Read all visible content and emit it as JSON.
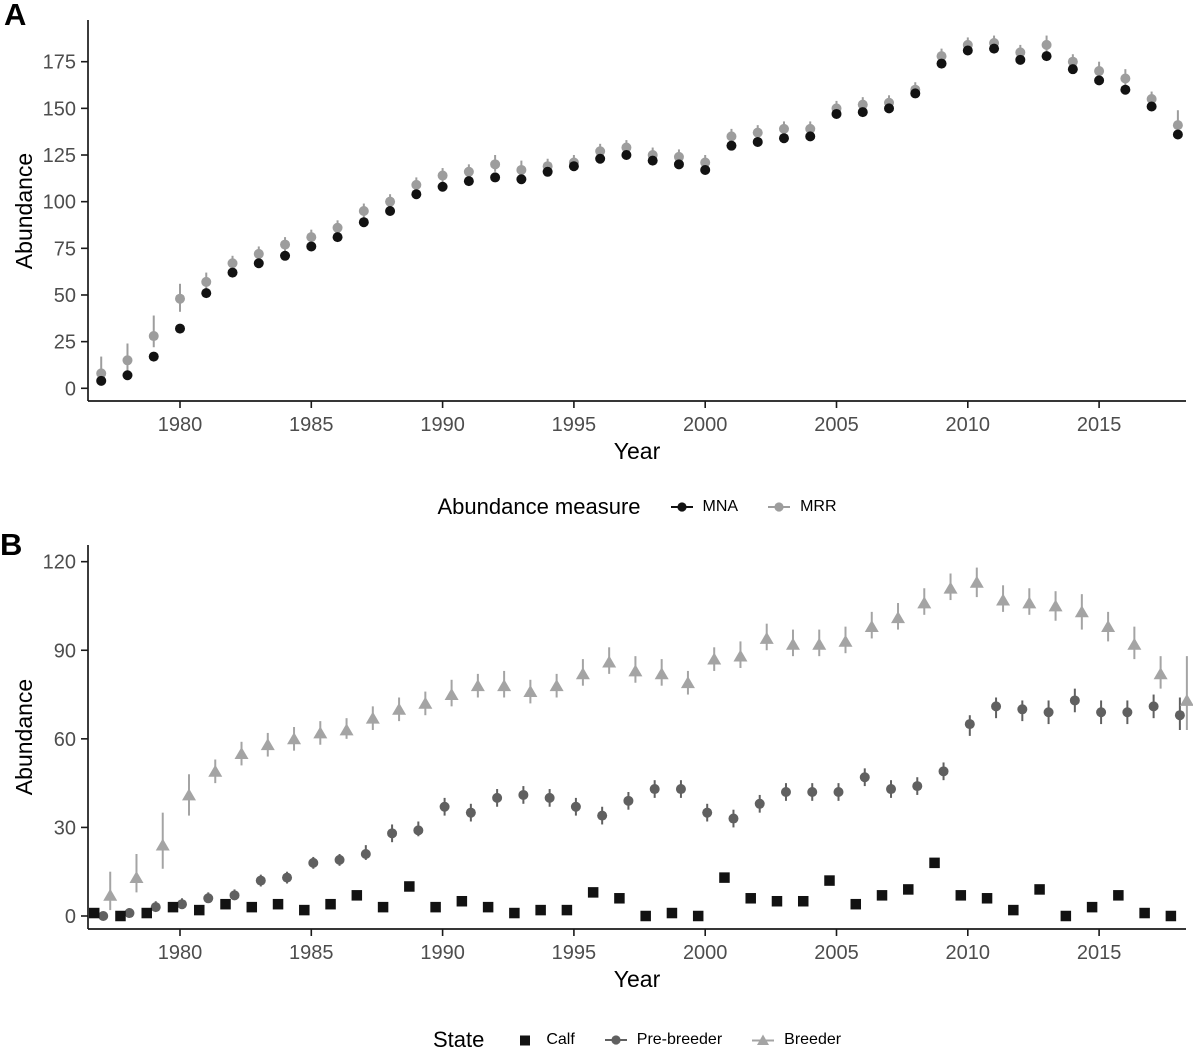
{
  "figure": {
    "panel_a_label": "A",
    "panel_b_label": "B"
  },
  "chart_data": [
    {
      "panel_label": "A",
      "type": "scatter",
      "title": "",
      "xlabel": "Year",
      "ylabel": "Abundance",
      "legend_title": "Abundance measure",
      "legend_position": "bottom",
      "grid": false,
      "xlim": [
        1976.5,
        2018.5
      ],
      "ylim": [
        0,
        190
      ],
      "xticks": [
        1980,
        1985,
        1990,
        1995,
        2000,
        2005,
        2010,
        2015
      ],
      "yticks": [
        0,
        25,
        50,
        75,
        100,
        125,
        150,
        175
      ],
      "x": [
        1977,
        1978,
        1979,
        1980,
        1981,
        1982,
        1983,
        1984,
        1985,
        1986,
        1987,
        1988,
        1989,
        1990,
        1991,
        1992,
        1993,
        1994,
        1995,
        1996,
        1997,
        1998,
        1999,
        2000,
        2001,
        2002,
        2003,
        2004,
        2005,
        2006,
        2007,
        2008,
        2009,
        2010,
        2011,
        2012,
        2013,
        2014,
        2015,
        2016,
        2017,
        2018
      ],
      "series": [
        {
          "name": "MNA",
          "marker": "circle",
          "color": "#121212",
          "values": [
            4,
            7,
            17,
            32,
            51,
            62,
            67,
            71,
            76,
            81,
            89,
            95,
            104,
            108,
            111,
            113,
            112,
            116,
            119,
            123,
            125,
            122,
            120,
            117,
            130,
            132,
            134,
            135,
            147,
            148,
            150,
            158,
            174,
            181,
            182,
            176,
            178,
            171,
            165,
            160,
            151,
            136
          ]
        },
        {
          "name": "MRR",
          "marker": "circle",
          "color": "#9d9d9d",
          "values": [
            8,
            15,
            28,
            48,
            57,
            67,
            72,
            77,
            81,
            86,
            95,
            100,
            109,
            114,
            116,
            120,
            117,
            119,
            121,
            127,
            129,
            125,
            124,
            121,
            135,
            137,
            139,
            139,
            150,
            152,
            153,
            160,
            178,
            184,
            185,
            180,
            184,
            175,
            170,
            166,
            155,
            141
          ],
          "ci_lo": [
            5,
            8,
            22,
            41,
            53,
            63,
            68,
            73,
            77,
            82,
            91,
            96,
            105,
            110,
            112,
            116,
            113,
            115,
            117,
            123,
            125,
            121,
            120,
            117,
            131,
            133,
            135,
            135,
            146,
            148,
            149,
            156,
            174,
            180,
            181,
            176,
            180,
            171,
            166,
            161,
            151,
            136
          ],
          "ci_hi": [
            17,
            24,
            39,
            56,
            62,
            71,
            76,
            81,
            85,
            90,
            99,
            104,
            113,
            118,
            120,
            125,
            122,
            123,
            125,
            131,
            133,
            129,
            128,
            125,
            139,
            141,
            143,
            143,
            154,
            156,
            157,
            164,
            182,
            188,
            189,
            184,
            189,
            179,
            175,
            171,
            159,
            149
          ]
        }
      ]
    },
    {
      "panel_label": "B",
      "type": "scatter",
      "title": "",
      "xlabel": "Year",
      "ylabel": "Abundance",
      "legend_title": "State",
      "legend_position": "bottom",
      "grid": false,
      "xlim": [
        1976.5,
        2018.5
      ],
      "ylim": [
        0,
        126
      ],
      "xticks": [
        1980,
        1985,
        1990,
        1995,
        2000,
        2005,
        2010,
        2015
      ],
      "yticks": [
        0,
        30,
        60,
        90,
        120
      ],
      "x": [
        1977,
        1978,
        1979,
        1980,
        1981,
        1982,
        1983,
        1984,
        1985,
        1986,
        1987,
        1988,
        1989,
        1990,
        1991,
        1992,
        1993,
        1994,
        1995,
        1996,
        1997,
        1998,
        1999,
        2000,
        2001,
        2002,
        2003,
        2004,
        2005,
        2006,
        2007,
        2008,
        2009,
        2010,
        2011,
        2012,
        2013,
        2014,
        2015,
        2016,
        2017,
        2018
      ],
      "series": [
        {
          "name": "Calf",
          "marker": "square",
          "color": "#121212",
          "values": [
            1,
            0,
            1,
            3,
            2,
            4,
            3,
            4,
            2,
            4,
            7,
            3,
            10,
            3,
            5,
            3,
            1,
            2,
            2,
            8,
            6,
            0,
            1,
            0,
            13,
            6,
            5,
            5,
            12,
            4,
            7,
            9,
            18,
            7,
            6,
            2,
            9,
            0,
            3,
            7,
            1,
            0
          ]
        },
        {
          "name": "Pre-breeder",
          "marker": "circle",
          "color": "#606060",
          "values": [
            0,
            1,
            3,
            4,
            6,
            7,
            12,
            13,
            18,
            19,
            21,
            28,
            29,
            37,
            35,
            40,
            41,
            40,
            37,
            34,
            39,
            43,
            43,
            35,
            33,
            38,
            42,
            42,
            42,
            47,
            43,
            44,
            49,
            65,
            71,
            70,
            69,
            73,
            69,
            69,
            71,
            68
          ],
          "ci_lo": [
            0,
            0,
            2,
            3,
            5,
            6,
            10,
            11,
            16,
            17,
            19,
            25,
            27,
            34,
            32,
            37,
            38,
            37,
            34,
            31,
            36,
            40,
            40,
            32,
            30,
            35,
            39,
            39,
            39,
            44,
            40,
            41,
            46,
            61,
            67,
            66,
            65,
            69,
            65,
            65,
            67,
            63
          ],
          "ci_hi": [
            1,
            2,
            5,
            6,
            8,
            9,
            14,
            15,
            20,
            21,
            24,
            31,
            32,
            40,
            38,
            43,
            44,
            43,
            40,
            37,
            42,
            46,
            46,
            38,
            36,
            41,
            45,
            45,
            45,
            50,
            46,
            47,
            52,
            68,
            74,
            73,
            73,
            77,
            73,
            73,
            75,
            74
          ]
        },
        {
          "name": "Breeder",
          "marker": "triangle",
          "color": "#a4a4a4",
          "values": [
            7,
            13,
            24,
            41,
            49,
            55,
            58,
            60,
            62,
            63,
            67,
            70,
            72,
            75,
            78,
            78,
            76,
            78,
            82,
            86,
            83,
            82,
            79,
            87,
            88,
            94,
            92,
            92,
            93,
            98,
            101,
            106,
            111,
            113,
            107,
            106,
            105,
            103,
            98,
            92,
            82,
            73
          ],
          "ci_lo": [
            2,
            8,
            16,
            34,
            45,
            51,
            54,
            56,
            58,
            60,
            63,
            66,
            68,
            71,
            74,
            74,
            72,
            74,
            78,
            82,
            79,
            78,
            75,
            83,
            84,
            90,
            88,
            88,
            89,
            94,
            97,
            102,
            107,
            108,
            103,
            102,
            100,
            97,
            93,
            87,
            77,
            63
          ],
          "ci_hi": [
            15,
            21,
            35,
            48,
            53,
            59,
            62,
            64,
            66,
            67,
            71,
            74,
            76,
            80,
            82,
            83,
            80,
            82,
            87,
            91,
            88,
            87,
            83,
            91,
            93,
            99,
            97,
            97,
            98,
            103,
            106,
            111,
            116,
            118,
            112,
            111,
            110,
            109,
            103,
            98,
            88,
            88
          ]
        }
      ]
    }
  ]
}
